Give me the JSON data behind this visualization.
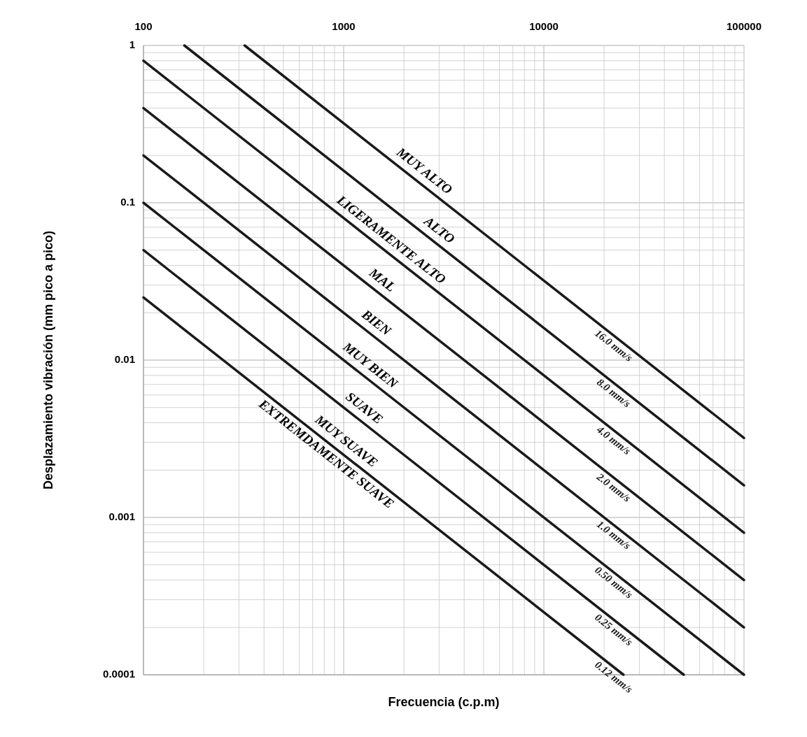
{
  "chart_data": {
    "type": "line",
    "xlabel": "Frecuencia (c.p.m)",
    "ylabel": "Desplazamiento vibración (mm pico a pico)",
    "log": "xy",
    "grid": true,
    "line_style": "solid",
    "xlim": [
      100,
      100000
    ],
    "xticks": [
      100,
      1000,
      10000,
      100000
    ],
    "ylim": [
      0.0001,
      1
    ],
    "yticks": [
      {
        "value": 0.0001,
        "label": "0.0001"
      },
      {
        "value": 0.001,
        "label": "0.001"
      },
      {
        "value": 0.01,
        "label": "0.01"
      },
      {
        "value": 0.1,
        "label": "0.1"
      },
      {
        "value": 1,
        "label": "1"
      }
    ],
    "series": [
      {
        "name": "16.0 mm/s",
        "color": "#1a1a1a",
        "x": [
          320,
          100000
        ],
        "values": [
          1,
          0.0032
        ]
      },
      {
        "name": "8.0 mm/s",
        "color": "#1a1a1a",
        "x": [
          160,
          100000
        ],
        "values": [
          1,
          0.0016
        ]
      },
      {
        "name": "4.0 mm/s",
        "color": "#1a1a1a",
        "x": [
          100,
          100000
        ],
        "values": [
          0.8,
          0.0008
        ]
      },
      {
        "name": "2.0 mm/s",
        "color": "#1a1a1a",
        "x": [
          100,
          100000
        ],
        "values": [
          0.4,
          0.0004
        ]
      },
      {
        "name": "1.0 mm/s",
        "color": "#1a1a1a",
        "x": [
          100,
          100000
        ],
        "values": [
          0.2,
          0.0002
        ]
      },
      {
        "name": "0.50 mm/s",
        "color": "#1a1a1a",
        "x": [
          100,
          100000
        ],
        "values": [
          0.1,
          0.0001
        ]
      },
      {
        "name": "0.25 mm/s",
        "color": "#1a1a1a",
        "x": [
          100,
          50000
        ],
        "values": [
          0.05,
          0.0001
        ]
      },
      {
        "name": "0.12 mm/s",
        "color": "#1a1a1a",
        "x": [
          100,
          25000
        ],
        "values": [
          0.025,
          0.0001
        ]
      }
    ],
    "annotations": [
      "MUY ALTO",
      "ALTO",
      "LIGERAMENTE ALTO",
      "MAL",
      "BIEN",
      "MUY BIEN",
      "SUAVE",
      "MUY SUAVE",
      "EXTREMDAMENTE SUAVE"
    ]
  }
}
